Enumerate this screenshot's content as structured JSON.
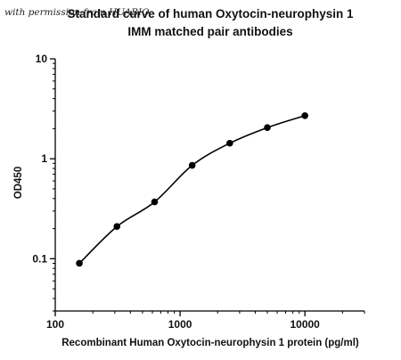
{
  "watermark": "with permission from HUABIO",
  "chart_data": {
    "type": "scatter",
    "title": [
      "Standard curve of human Oxytocin-neurophysin 1",
      "IMM matched pair antibodies"
    ],
    "xlabel": "Recombinant Human Oxytocin-neurophysin 1 protein (pg/ml)",
    "ylabel": "OD450",
    "xscale": "log",
    "yscale": "log",
    "xlim": [
      100,
      30000
    ],
    "ylim": [
      0.03,
      10
    ],
    "xticks": [
      {
        "value": 100,
        "label": "100"
      },
      {
        "value": 1000,
        "label": "1000"
      },
      {
        "value": 10000,
        "label": "10000"
      }
    ],
    "yticks": [
      {
        "value": 0.1,
        "label": "0.1"
      },
      {
        "value": 1,
        "label": "1"
      },
      {
        "value": 10,
        "label": "10"
      }
    ],
    "grid": false,
    "legend": "none",
    "series": [
      {
        "x": [
          156,
          312,
          625,
          1250,
          2500,
          5000,
          10000
        ],
        "y": [
          0.09,
          0.21,
          0.37,
          0.86,
          1.43,
          2.05,
          2.7
        ],
        "marker": "circle",
        "fit_line": true,
        "color": "#000000"
      }
    ]
  }
}
